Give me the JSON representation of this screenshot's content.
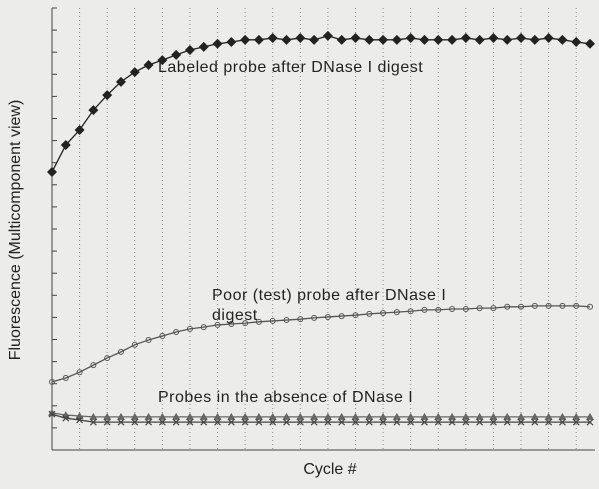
{
  "chart_data": {
    "type": "line",
    "y_label": "Fluorescence (Multicomponent view)",
    "x_label": "Cycle #",
    "annotations": [
      "Labeled probe after DNase I digest",
      [
        "Poor (test) probe after DNase I",
        "digest"
      ],
      "Probes in the absence of DNase I"
    ],
    "x": [
      1,
      2,
      3,
      4,
      5,
      6,
      7,
      8,
      9,
      10,
      11,
      12,
      13,
      14,
      15,
      16,
      17,
      18,
      19,
      20,
      21,
      22,
      23,
      24,
      25,
      26,
      27,
      28,
      29,
      30,
      31,
      32,
      33,
      34,
      35,
      36,
      37,
      38,
      39,
      40
    ],
    "xlim": [
      1,
      40
    ],
    "ylim": [
      0,
      100
    ],
    "xticks": [
      1,
      3,
      5,
      7,
      9,
      11,
      13,
      15,
      17,
      19,
      21,
      23,
      25,
      27,
      29,
      31,
      33,
      35,
      37,
      39
    ],
    "yticks": [
      0,
      5,
      10,
      15,
      20,
      25,
      30,
      35,
      40,
      45,
      50,
      55,
      60,
      65,
      70,
      75,
      80,
      85,
      90,
      95,
      100
    ],
    "grid": true,
    "series": [
      {
        "color": "#222222",
        "marker": "diamond",
        "values": [
          62.9,
          69.0,
          72.4,
          76.9,
          80.3,
          83.3,
          85.5,
          87.1,
          88.2,
          89.4,
          90.5,
          91.2,
          91.9,
          92.3,
          92.8,
          92.8,
          93.2,
          92.8,
          93.2,
          92.8,
          93.7,
          92.8,
          93.2,
          92.8,
          92.8,
          92.8,
          93.2,
          92.8,
          92.8,
          92.8,
          93.2,
          92.8,
          93.2,
          92.8,
          93.2,
          92.8,
          93.2,
          92.8,
          92.3,
          91.9
        ]
      },
      {
        "color": "#555555",
        "marker": "circle",
        "values": [
          15.4,
          16.3,
          17.6,
          19.2,
          20.8,
          22.2,
          23.8,
          24.9,
          25.8,
          26.7,
          27.4,
          27.8,
          28.3,
          28.5,
          28.7,
          29.0,
          29.2,
          29.4,
          29.6,
          29.9,
          30.1,
          30.3,
          30.5,
          30.8,
          31.0,
          31.2,
          31.4,
          31.7,
          31.7,
          31.9,
          31.9,
          32.1,
          32.1,
          32.4,
          32.4,
          32.6,
          32.6,
          32.6,
          32.6,
          32.4
        ]
      },
      {
        "color": "#666666",
        "marker": "triangle",
        "values": [
          8.4,
          7.9,
          7.7,
          7.5,
          7.5,
          7.5,
          7.5,
          7.5,
          7.5,
          7.5,
          7.5,
          7.5,
          7.5,
          7.5,
          7.5,
          7.5,
          7.5,
          7.5,
          7.5,
          7.5,
          7.5,
          7.5,
          7.5,
          7.5,
          7.5,
          7.5,
          7.5,
          7.5,
          7.5,
          7.5,
          7.5,
          7.5,
          7.5,
          7.5,
          7.5,
          7.5,
          7.5,
          7.5,
          7.5,
          7.5
        ]
      },
      {
        "color": "#444444",
        "marker": "cross",
        "values": [
          8.1,
          7.2,
          6.8,
          6.3,
          6.3,
          6.3,
          6.3,
          6.3,
          6.3,
          6.3,
          6.3,
          6.3,
          6.3,
          6.3,
          6.3,
          6.3,
          6.3,
          6.3,
          6.3,
          6.3,
          6.3,
          6.3,
          6.3,
          6.3,
          6.3,
          6.3,
          6.3,
          6.3,
          6.3,
          6.3,
          6.3,
          6.3,
          6.3,
          6.3,
          6.3,
          6.3,
          6.3,
          6.3,
          6.3,
          6.3
        ]
      }
    ]
  }
}
